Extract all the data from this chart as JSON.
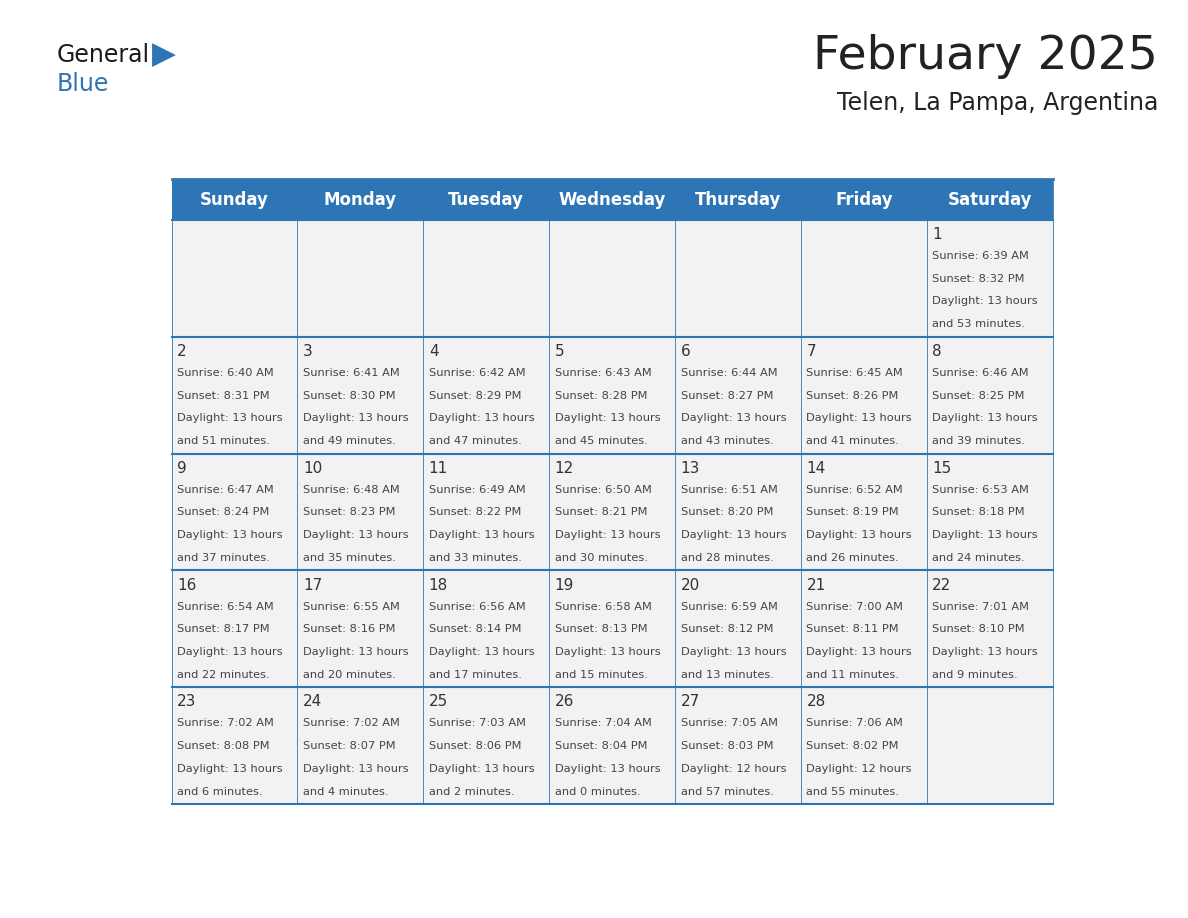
{
  "title": "February 2025",
  "subtitle": "Telen, La Pampa, Argentina",
  "header_bg": "#2e75b6",
  "header_text": "#ffffff",
  "cell_bg_light": "#f2f2f2",
  "border_color": "#2e75b6",
  "day_names": [
    "Sunday",
    "Monday",
    "Tuesday",
    "Wednesday",
    "Thursday",
    "Friday",
    "Saturday"
  ],
  "title_color": "#222222",
  "subtitle_color": "#222222",
  "cell_text_color": "#444444",
  "day_num_color": "#333333",
  "calendar": [
    [
      null,
      null,
      null,
      null,
      null,
      null,
      {
        "day": 1,
        "sunrise": "6:39 AM",
        "sunset": "8:32 PM",
        "daylight": "13 hours and 53 minutes."
      }
    ],
    [
      {
        "day": 2,
        "sunrise": "6:40 AM",
        "sunset": "8:31 PM",
        "daylight": "13 hours and 51 minutes."
      },
      {
        "day": 3,
        "sunrise": "6:41 AM",
        "sunset": "8:30 PM",
        "daylight": "13 hours and 49 minutes."
      },
      {
        "day": 4,
        "sunrise": "6:42 AM",
        "sunset": "8:29 PM",
        "daylight": "13 hours and 47 minutes."
      },
      {
        "day": 5,
        "sunrise": "6:43 AM",
        "sunset": "8:28 PM",
        "daylight": "13 hours and 45 minutes."
      },
      {
        "day": 6,
        "sunrise": "6:44 AM",
        "sunset": "8:27 PM",
        "daylight": "13 hours and 43 minutes."
      },
      {
        "day": 7,
        "sunrise": "6:45 AM",
        "sunset": "8:26 PM",
        "daylight": "13 hours and 41 minutes."
      },
      {
        "day": 8,
        "sunrise": "6:46 AM",
        "sunset": "8:25 PM",
        "daylight": "13 hours and 39 minutes."
      }
    ],
    [
      {
        "day": 9,
        "sunrise": "6:47 AM",
        "sunset": "8:24 PM",
        "daylight": "13 hours and 37 minutes."
      },
      {
        "day": 10,
        "sunrise": "6:48 AM",
        "sunset": "8:23 PM",
        "daylight": "13 hours and 35 minutes."
      },
      {
        "day": 11,
        "sunrise": "6:49 AM",
        "sunset": "8:22 PM",
        "daylight": "13 hours and 33 minutes."
      },
      {
        "day": 12,
        "sunrise": "6:50 AM",
        "sunset": "8:21 PM",
        "daylight": "13 hours and 30 minutes."
      },
      {
        "day": 13,
        "sunrise": "6:51 AM",
        "sunset": "8:20 PM",
        "daylight": "13 hours and 28 minutes."
      },
      {
        "day": 14,
        "sunrise": "6:52 AM",
        "sunset": "8:19 PM",
        "daylight": "13 hours and 26 minutes."
      },
      {
        "day": 15,
        "sunrise": "6:53 AM",
        "sunset": "8:18 PM",
        "daylight": "13 hours and 24 minutes."
      }
    ],
    [
      {
        "day": 16,
        "sunrise": "6:54 AM",
        "sunset": "8:17 PM",
        "daylight": "13 hours and 22 minutes."
      },
      {
        "day": 17,
        "sunrise": "6:55 AM",
        "sunset": "8:16 PM",
        "daylight": "13 hours and 20 minutes."
      },
      {
        "day": 18,
        "sunrise": "6:56 AM",
        "sunset": "8:14 PM",
        "daylight": "13 hours and 17 minutes."
      },
      {
        "day": 19,
        "sunrise": "6:58 AM",
        "sunset": "8:13 PM",
        "daylight": "13 hours and 15 minutes."
      },
      {
        "day": 20,
        "sunrise": "6:59 AM",
        "sunset": "8:12 PM",
        "daylight": "13 hours and 13 minutes."
      },
      {
        "day": 21,
        "sunrise": "7:00 AM",
        "sunset": "8:11 PM",
        "daylight": "13 hours and 11 minutes."
      },
      {
        "day": 22,
        "sunrise": "7:01 AM",
        "sunset": "8:10 PM",
        "daylight": "13 hours and 9 minutes."
      }
    ],
    [
      {
        "day": 23,
        "sunrise": "7:02 AM",
        "sunset": "8:08 PM",
        "daylight": "13 hours and 6 minutes."
      },
      {
        "day": 24,
        "sunrise": "7:02 AM",
        "sunset": "8:07 PM",
        "daylight": "13 hours and 4 minutes."
      },
      {
        "day": 25,
        "sunrise": "7:03 AM",
        "sunset": "8:06 PM",
        "daylight": "13 hours and 2 minutes."
      },
      {
        "day": 26,
        "sunrise": "7:04 AM",
        "sunset": "8:04 PM",
        "daylight": "13 hours and 0 minutes."
      },
      {
        "day": 27,
        "sunrise": "7:05 AM",
        "sunset": "8:03 PM",
        "daylight": "12 hours and 57 minutes."
      },
      {
        "day": 28,
        "sunrise": "7:06 AM",
        "sunset": "8:02 PM",
        "daylight": "12 hours and 55 minutes."
      },
      null
    ]
  ]
}
